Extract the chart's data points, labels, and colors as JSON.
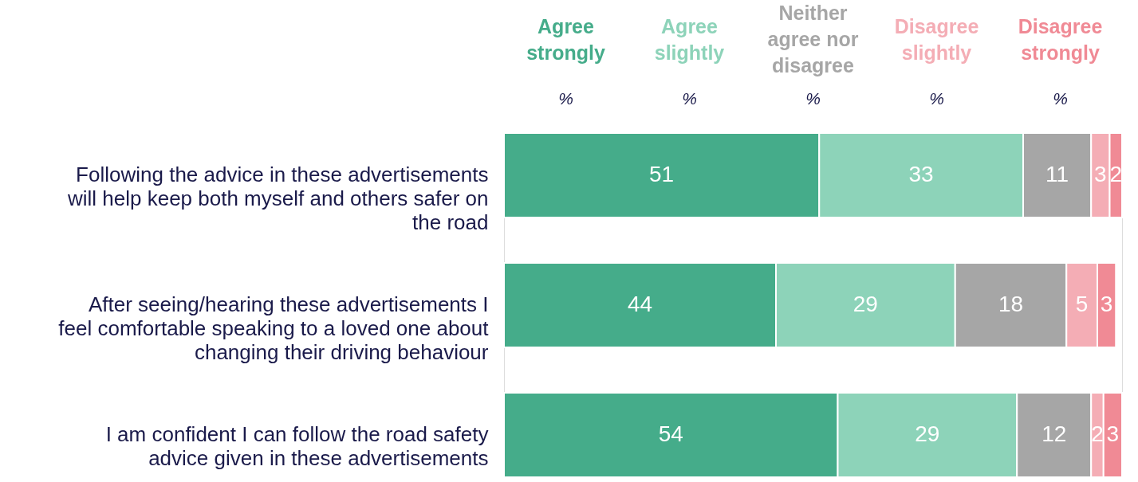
{
  "chart_data": {
    "type": "bar",
    "orientation": "horizontal",
    "stacked": true,
    "data_labels": true,
    "legend": "top",
    "grid": false,
    "tick_labels": "y",
    "xlim": [
      0,
      100
    ],
    "categories": [
      "Following the advice in these advertisements will help keep both myself and others safer on the road",
      "After seeing/hearing these advertisements I feel comfortable speaking to a loved one about changing their driving behaviour",
      "I am confident I can follow the road safety advice given in these advertisements"
    ],
    "series": [
      {
        "name": "Agree strongly",
        "color": "#45ac8a",
        "values": [
          51,
          44,
          54
        ]
      },
      {
        "name": "Agree slightly",
        "color": "#8dd3b9",
        "values": [
          33,
          29,
          29
        ]
      },
      {
        "name": "Neither agree nor disagree",
        "color": "#a6a6a6",
        "values": [
          11,
          18,
          12
        ]
      },
      {
        "name": "Disagree slightly",
        "color": "#f4adb5",
        "values": [
          3,
          5,
          2
        ]
      },
      {
        "name": "Disagree strongly",
        "color": "#f08a95",
        "values": [
          2,
          3,
          3
        ]
      }
    ],
    "annotations": [
      "%",
      "%",
      "%",
      "%",
      "%"
    ]
  }
}
